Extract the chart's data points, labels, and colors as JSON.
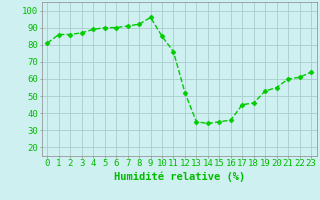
{
  "x": [
    0,
    1,
    2,
    3,
    4,
    5,
    6,
    7,
    8,
    9,
    10,
    11,
    12,
    13,
    14,
    15,
    16,
    17,
    18,
    19,
    20,
    21,
    22,
    23
  ],
  "y": [
    81,
    86,
    86,
    87,
    89,
    90,
    90,
    91,
    92,
    96,
    85,
    76,
    52,
    35,
    34,
    35,
    36,
    45,
    46,
    53,
    55,
    60,
    61,
    64
  ],
  "line_color": "#00cc00",
  "marker": "D",
  "marker_size": 2.5,
  "bg_color": "#cff0f0",
  "grid_color": "#aacccc",
  "xlabel": "Humidité relative (%)",
  "xlabel_color": "#00bb00",
  "xlabel_fontsize": 7.5,
  "ylabel_ticks": [
    20,
    30,
    40,
    50,
    60,
    70,
    80,
    90,
    100
  ],
  "ylim": [
    15,
    105
  ],
  "xlim": [
    -0.5,
    23.5
  ],
  "tick_fontsize": 6.5,
  "tick_color": "#00bb00",
  "line_width": 1.0
}
